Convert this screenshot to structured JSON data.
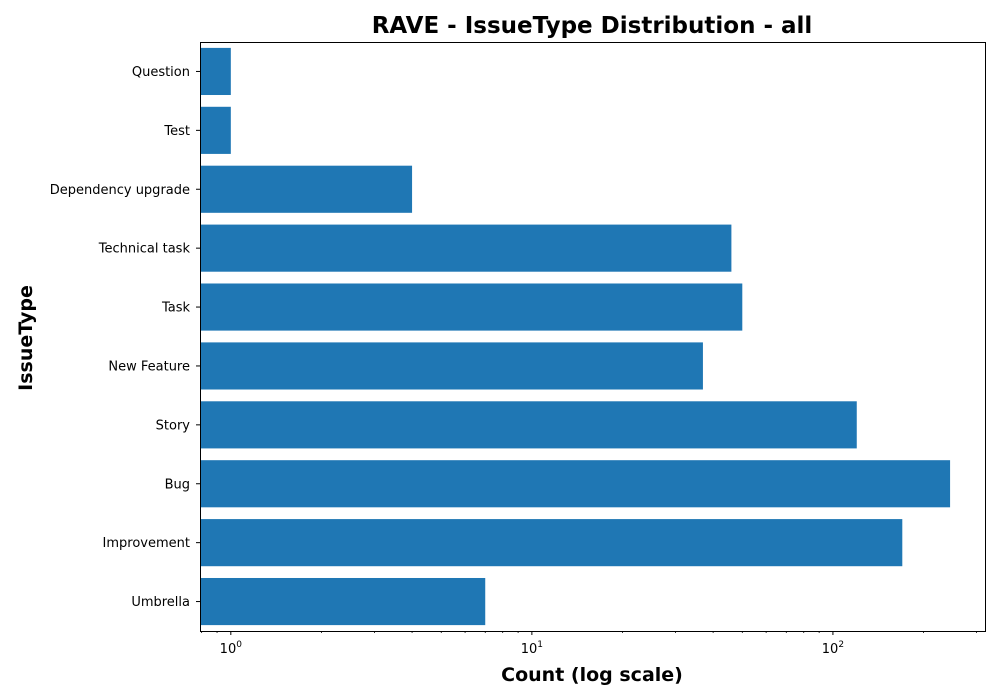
{
  "chart_data": {
    "type": "bar",
    "orientation": "horizontal",
    "title": "RAVE - IssueType Distribution - all",
    "xlabel": "Count (log scale)",
    "ylabel": "IssueType",
    "x_scale": "log",
    "xlim": [
      0.79,
      320
    ],
    "x_ticks": [
      {
        "value": 1,
        "base": "10",
        "exponent": "0"
      },
      {
        "value": 10,
        "base": "10",
        "exponent": "1"
      },
      {
        "value": 100,
        "base": "10",
        "exponent": "2"
      }
    ],
    "categories": [
      "Question",
      "Test",
      "Dependency upgrade",
      "Technical task",
      "Task",
      "New Feature",
      "Story",
      "Bug",
      "Improvement",
      "Umbrella"
    ],
    "values": [
      1,
      1,
      4,
      46,
      50,
      37,
      120,
      245,
      170,
      7
    ],
    "bar_color": "#1f77b4",
    "grid": false,
    "legend": "none"
  }
}
